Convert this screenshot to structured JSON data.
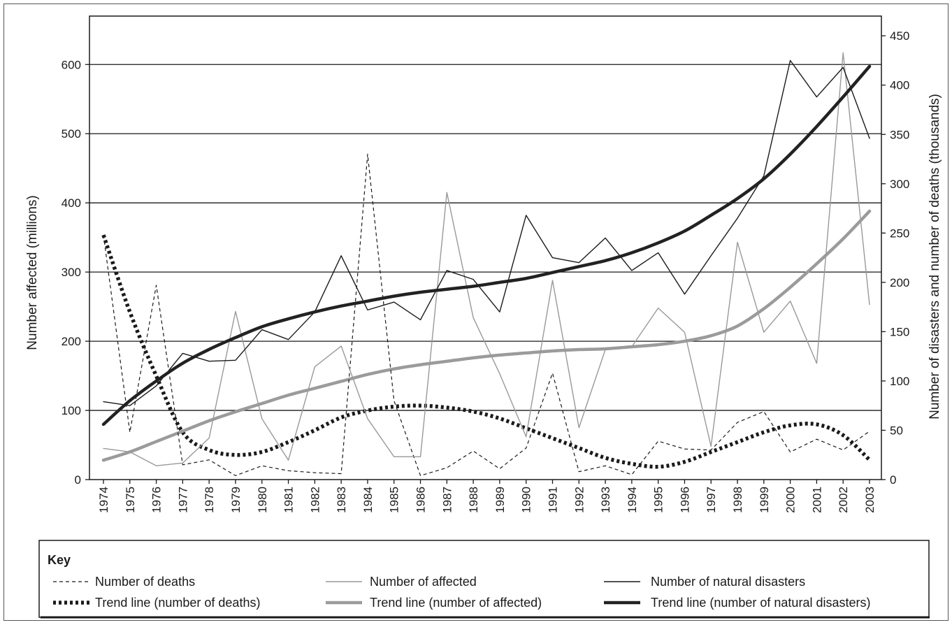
{
  "chart_data": {
    "type": "line",
    "x": [
      "1974",
      "1975",
      "1976",
      "1977",
      "1978",
      "1979",
      "1980",
      "1981",
      "1982",
      "1983",
      "1984",
      "1985",
      "1986",
      "1987",
      "1988",
      "1989",
      "1990",
      "1991",
      "1992",
      "1993",
      "1994",
      "1995",
      "1996",
      "1997",
      "1998",
      "1999",
      "2000",
      "2001",
      "2002",
      "2003"
    ],
    "left_axis": {
      "label": "Number affected (millions)",
      "ticks": [
        0,
        100,
        200,
        300,
        400,
        500,
        600
      ],
      "ylim": [
        0,
        670
      ]
    },
    "right_axis": {
      "label": "Number of disasters and number of deaths (thousands)",
      "ticks": [
        0,
        50,
        100,
        150,
        200,
        250,
        300,
        350,
        400,
        450
      ],
      "ylim": [
        0,
        470
      ]
    },
    "grid": "horizontal at left-axis 100s",
    "series": [
      {
        "name": "Number of deaths",
        "axis": "right",
        "style": "thin-dashed",
        "color": "#1a1a1a",
        "values": [
          248,
          48,
          197,
          15,
          20,
          4,
          14,
          9,
          7,
          6,
          330,
          80,
          4,
          12,
          29,
          11,
          32,
          108,
          8,
          14,
          5,
          39,
          31,
          30,
          58,
          69,
          28,
          41,
          30,
          49
        ]
      },
      {
        "name": "Trend line (number of deaths)",
        "axis": "right",
        "style": "thick-dotted",
        "color": "#1a1a1a",
        "values": [
          248,
          170,
          105,
          48,
          30,
          25,
          28,
          38,
          50,
          63,
          70,
          74,
          75,
          73,
          69,
          62,
          52,
          42,
          32,
          22,
          16,
          13,
          18,
          28,
          38,
          48,
          55,
          56,
          45,
          20
        ]
      },
      {
        "name": "Number of affected",
        "axis": "left",
        "style": "thin-solid",
        "color": "#999999",
        "values": [
          45,
          40,
          20,
          24,
          60,
          243,
          88,
          28,
          163,
          193,
          88,
          33,
          33,
          415,
          234,
          153,
          62,
          288,
          75,
          188,
          192,
          248,
          213,
          48,
          343,
          213,
          258,
          168,
          617,
          253
        ]
      },
      {
        "name": "Trend line (number of affected)",
        "axis": "left",
        "style": "thick-solid",
        "color": "#9b9b9b",
        "values": [
          28,
          40,
          55,
          70,
          85,
          98,
          110,
          122,
          132,
          142,
          152,
          160,
          166,
          171,
          176,
          180,
          183,
          186,
          188,
          189,
          192,
          195,
          200,
          208,
          222,
          247,
          278,
          312,
          348,
          388
        ]
      },
      {
        "name": "Number of natural disasters",
        "axis": "right",
        "style": "thin-solid",
        "color": "#1a1a1a",
        "values": [
          79,
          75,
          95,
          128,
          120,
          121,
          152,
          142,
          170,
          227,
          172,
          180,
          162,
          212,
          203,
          170,
          268,
          225,
          220,
          245,
          212,
          230,
          188,
          227,
          265,
          308,
          425,
          388,
          418,
          346
        ]
      },
      {
        "name": "Trend line (number of natural disasters)",
        "axis": "right",
        "style": "thick-solid",
        "color": "#222222",
        "values": [
          56,
          80,
          100,
          118,
          132,
          144,
          155,
          163,
          170,
          176,
          181,
          186,
          190,
          193,
          196,
          200,
          204,
          210,
          216,
          222,
          230,
          240,
          252,
          268,
          285,
          305,
          330,
          358,
          388,
          419
        ]
      }
    ],
    "legend": {
      "title": "Key",
      "placement": "bottom",
      "items": [
        "Number of deaths",
        "Number of affected",
        "Number of natural disasters",
        "Trend line (number of deaths)",
        "Trend line (number of affected)",
        "Trend line (number of natural disasters)"
      ]
    }
  }
}
